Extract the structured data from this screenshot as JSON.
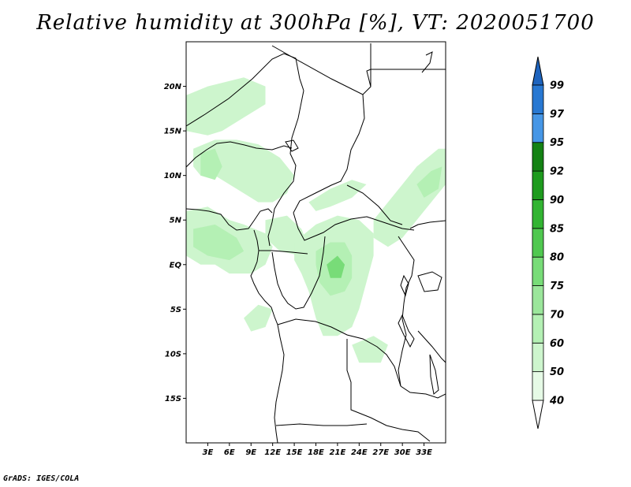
{
  "title": "Relative humidity at 300hPa [%], VT: 2020051700",
  "credit": "GrADS: IGES/COLA",
  "map": {
    "lon_range": [
      0,
      36
    ],
    "lat_range": [
      -20,
      25
    ],
    "lat_ticks": [
      {
        "lat": 20,
        "label": "20N"
      },
      {
        "lat": 15,
        "label": "15N"
      },
      {
        "lat": 10,
        "label": "10N"
      },
      {
        "lat": 5,
        "label": "5N"
      },
      {
        "lat": 0,
        "label": "EQ"
      },
      {
        "lat": -5,
        "label": "5S"
      },
      {
        "lat": -10,
        "label": "10S"
      },
      {
        "lat": -15,
        "label": "15S"
      }
    ],
    "lon_ticks": [
      {
        "lon": 3,
        "label": "3E"
      },
      {
        "lon": 6,
        "label": "6E"
      },
      {
        "lon": 9,
        "label": "9E"
      },
      {
        "lon": 12,
        "label": "12E"
      },
      {
        "lon": 15,
        "label": "15E"
      },
      {
        "lon": 18,
        "label": "18E"
      },
      {
        "lon": 21,
        "label": "21E"
      },
      {
        "lon": 24,
        "label": "24E"
      },
      {
        "lon": 27,
        "label": "27E"
      },
      {
        "lon": 30,
        "label": "30E"
      },
      {
        "lon": 33,
        "label": "33E"
      }
    ]
  },
  "colorbar": {
    "levels": [
      {
        "label": "40",
        "color": "#ffffff"
      },
      {
        "label": "50",
        "color": "#e6fae6"
      },
      {
        "label": "60",
        "color": "#cdf5cd"
      },
      {
        "label": "70",
        "color": "#b4f0b4"
      },
      {
        "label": "75",
        "color": "#9be69b"
      },
      {
        "label": "80",
        "color": "#78dc78"
      },
      {
        "label": "85",
        "color": "#50c850"
      },
      {
        "label": "90",
        "color": "#32b432"
      },
      {
        "label": "92",
        "color": "#1e9b1e"
      },
      {
        "label": "95",
        "color": "#148214"
      },
      {
        "label": "97",
        "color": "#4696e6"
      },
      {
        "label": "99",
        "color": "#2878d2"
      }
    ],
    "top_color": "#1e64be"
  },
  "humidity_regions": [
    {
      "level": "60",
      "points": [
        [
          0,
          19
        ],
        [
          3,
          20
        ],
        [
          8,
          21
        ],
        [
          11,
          20
        ],
        [
          11,
          18
        ],
        [
          8,
          16.5
        ],
        [
          5,
          15
        ],
        [
          3,
          14.5
        ],
        [
          0,
          15
        ]
      ]
    },
    {
      "level": "60",
      "points": [
        [
          1,
          13
        ],
        [
          4,
          14
        ],
        [
          7,
          14
        ],
        [
          10,
          13.5
        ],
        [
          13,
          12
        ],
        [
          15,
          10
        ],
        [
          14,
          8
        ],
        [
          12,
          7
        ],
        [
          10,
          7
        ],
        [
          8,
          8
        ],
        [
          6,
          9
        ],
        [
          4,
          10
        ],
        [
          2,
          10
        ],
        [
          1,
          11
        ]
      ]
    },
    {
      "level": "70",
      "points": [
        [
          2,
          12.5
        ],
        [
          4,
          13
        ],
        [
          5,
          11
        ],
        [
          4,
          9.5
        ],
        [
          2,
          10
        ]
      ]
    },
    {
      "level": "60",
      "points": [
        [
          0,
          6
        ],
        [
          3,
          6.5
        ],
        [
          6,
          5
        ],
        [
          8,
          4.5
        ],
        [
          11,
          3.5
        ],
        [
          12,
          2
        ],
        [
          11,
          0
        ],
        [
          9,
          -1
        ],
        [
          6,
          -1
        ],
        [
          4,
          0
        ],
        [
          2,
          0
        ],
        [
          0,
          1
        ]
      ]
    },
    {
      "level": "70",
      "points": [
        [
          1,
          4
        ],
        [
          4,
          4.5
        ],
        [
          7,
          3
        ],
        [
          8,
          1.5
        ],
        [
          6,
          0.5
        ],
        [
          3,
          1
        ],
        [
          1,
          2
        ]
      ]
    },
    {
      "level": "60",
      "points": [
        [
          11,
          5
        ],
        [
          14,
          5.5
        ],
        [
          16,
          4
        ],
        [
          17,
          2
        ],
        [
          16,
          1
        ],
        [
          13,
          1.5
        ],
        [
          11,
          3
        ]
      ]
    },
    {
      "level": "60",
      "points": [
        [
          15,
          2.5
        ],
        [
          18,
          4.5
        ],
        [
          21,
          5.5
        ],
        [
          24,
          5
        ],
        [
          26,
          3.5
        ],
        [
          26,
          1
        ],
        [
          25,
          -2
        ],
        [
          24,
          -5
        ],
        [
          23,
          -7
        ],
        [
          21,
          -8
        ],
        [
          19,
          -8
        ],
        [
          18,
          -6
        ],
        [
          17,
          -3
        ],
        [
          16,
          -1
        ],
        [
          15,
          0.5
        ]
      ]
    },
    {
      "level": "70",
      "points": [
        [
          18,
          1.5
        ],
        [
          20,
          2.5
        ],
        [
          22,
          2.5
        ],
        [
          23,
          1
        ],
        [
          23,
          -1.5
        ],
        [
          22,
          -3
        ],
        [
          20,
          -3.5
        ],
        [
          18.5,
          -2
        ],
        [
          18,
          0
        ]
      ]
    },
    {
      "level": "80",
      "points": [
        [
          19.5,
          0
        ],
        [
          21,
          1
        ],
        [
          22,
          0
        ],
        [
          21.5,
          -1.5
        ],
        [
          20,
          -1.5
        ]
      ]
    },
    {
      "level": "60",
      "points": [
        [
          17,
          7
        ],
        [
          20,
          8.5
        ],
        [
          23,
          9.5
        ],
        [
          25,
          9
        ],
        [
          23,
          7.5
        ],
        [
          20,
          6.5
        ],
        [
          18,
          6
        ]
      ]
    },
    {
      "level": "60",
      "points": [
        [
          26,
          5
        ],
        [
          28,
          7
        ],
        [
          30,
          9
        ],
        [
          32,
          11
        ],
        [
          35,
          13
        ],
        [
          36,
          13
        ],
        [
          36,
          9
        ],
        [
          34,
          7
        ],
        [
          32,
          5
        ],
        [
          30,
          3
        ],
        [
          28,
          2
        ],
        [
          26,
          3
        ]
      ]
    },
    {
      "level": "70",
      "points": [
        [
          32,
          9
        ],
        [
          34,
          10.5
        ],
        [
          35.5,
          11
        ],
        [
          35,
          8.5
        ],
        [
          33,
          7.5
        ]
      ]
    },
    {
      "level": "60",
      "points": [
        [
          8,
          -6
        ],
        [
          10,
          -4.5
        ],
        [
          12,
          -5
        ],
        [
          11,
          -7
        ],
        [
          9,
          -7.5
        ]
      ]
    },
    {
      "level": "60",
      "points": [
        [
          23,
          -9
        ],
        [
          26,
          -8
        ],
        [
          28,
          -9
        ],
        [
          27,
          -11
        ],
        [
          24,
          -11
        ]
      ]
    }
  ]
}
